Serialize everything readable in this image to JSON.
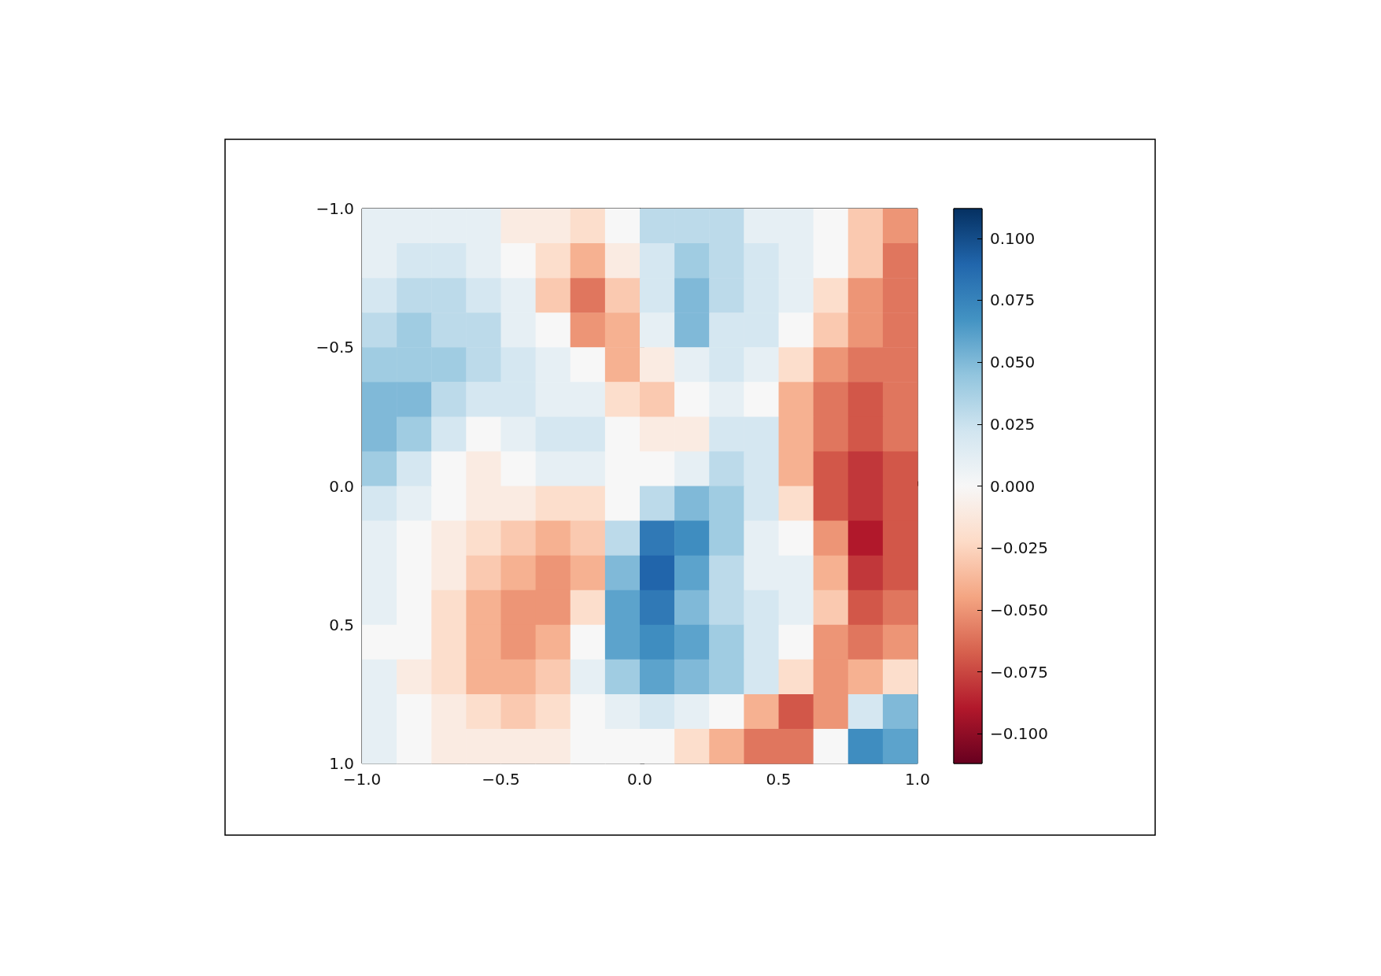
{
  "chart_data": {
    "type": "heatmap",
    "x": [
      -0.9375,
      -0.8125,
      -0.6875,
      -0.5625,
      -0.4375,
      -0.3125,
      -0.1875,
      -0.0625,
      0.0625,
      0.1875,
      0.3125,
      0.4375,
      0.5625,
      0.6875,
      0.8125,
      0.9375
    ],
    "y": [
      -0.9375,
      -0.8125,
      -0.6875,
      -0.5625,
      -0.4375,
      -0.3125,
      -0.1875,
      -0.0625,
      0.0625,
      0.1875,
      0.3125,
      0.4375,
      0.5625,
      0.6875,
      0.8125,
      0.9375
    ],
    "cells": [
      [
        0.01,
        0.01,
        0.01,
        0.01,
        -0.01,
        -0.01,
        -0.02,
        0.0,
        0.03,
        0.03,
        0.03,
        0.01,
        0.01,
        0.0,
        -0.03,
        -0.05
      ],
      [
        0.01,
        0.02,
        0.02,
        0.01,
        0.0,
        -0.02,
        -0.04,
        -0.01,
        0.02,
        0.04,
        0.03,
        0.02,
        0.01,
        0.0,
        -0.03,
        -0.06
      ],
      [
        0.02,
        0.03,
        0.03,
        0.02,
        0.01,
        -0.03,
        -0.06,
        -0.03,
        0.02,
        0.05,
        0.03,
        0.02,
        0.01,
        -0.02,
        -0.05,
        -0.06
      ],
      [
        0.03,
        0.04,
        0.03,
        0.03,
        0.01,
        0.0,
        -0.05,
        -0.04,
        0.01,
        0.05,
        0.02,
        0.02,
        0.0,
        -0.03,
        -0.05,
        -0.06
      ],
      [
        0.04,
        0.04,
        0.04,
        0.03,
        0.02,
        0.01,
        0.0,
        -0.04,
        -0.01,
        0.01,
        0.02,
        0.01,
        -0.02,
        -0.05,
        -0.06,
        -0.06
      ],
      [
        0.05,
        0.05,
        0.03,
        0.02,
        0.02,
        0.01,
        0.01,
        -0.02,
        -0.03,
        0.0,
        0.01,
        0.0,
        -0.04,
        -0.06,
        -0.07,
        -0.06
      ],
      [
        0.05,
        0.04,
        0.02,
        0.0,
        0.01,
        0.02,
        0.02,
        0.0,
        -0.01,
        -0.01,
        0.02,
        0.02,
        -0.04,
        -0.06,
        -0.07,
        -0.06
      ],
      [
        0.04,
        0.02,
        0.0,
        -0.01,
        0.0,
        0.01,
        0.01,
        0.0,
        0.0,
        0.01,
        0.03,
        0.02,
        -0.04,
        -0.07,
        -0.08,
        -0.07
      ],
      [
        0.02,
        0.01,
        0.0,
        -0.01,
        -0.01,
        -0.02,
        -0.02,
        0.0,
        0.03,
        0.05,
        0.04,
        0.02,
        -0.02,
        -0.07,
        -0.08,
        -0.07
      ],
      [
        0.01,
        0.0,
        -0.01,
        -0.02,
        -0.03,
        -0.04,
        -0.03,
        0.03,
        0.08,
        0.07,
        0.04,
        0.01,
        0.0,
        -0.05,
        -0.09,
        -0.07
      ],
      [
        0.01,
        0.0,
        -0.01,
        -0.03,
        -0.04,
        -0.05,
        -0.04,
        0.05,
        0.09,
        0.06,
        0.03,
        0.01,
        0.01,
        -0.04,
        -0.08,
        -0.07
      ],
      [
        0.01,
        0.0,
        -0.02,
        -0.04,
        -0.05,
        -0.05,
        -0.02,
        0.06,
        0.08,
        0.05,
        0.03,
        0.02,
        0.01,
        -0.03,
        -0.07,
        -0.06
      ],
      [
        0.0,
        0.0,
        -0.02,
        -0.04,
        -0.05,
        -0.04,
        0.0,
        0.06,
        0.07,
        0.06,
        0.04,
        0.02,
        0.0,
        -0.05,
        -0.06,
        -0.05
      ],
      [
        0.01,
        -0.01,
        -0.02,
        -0.04,
        -0.04,
        -0.03,
        0.01,
        0.04,
        0.06,
        0.05,
        0.04,
        0.02,
        -0.02,
        -0.05,
        -0.04,
        -0.02
      ],
      [
        0.01,
        0.0,
        -0.01,
        -0.02,
        -0.03,
        -0.02,
        0.0,
        0.01,
        0.02,
        0.01,
        0.0,
        -0.04,
        -0.07,
        -0.05,
        0.02,
        0.05
      ],
      [
        0.01,
        0.0,
        -0.01,
        -0.01,
        -0.01,
        -0.01,
        0.0,
        0.0,
        0.0,
        -0.02,
        -0.04,
        -0.06,
        -0.06,
        0.0,
        0.07,
        0.06
      ]
    ],
    "xlim": [
      -1,
      1
    ],
    "xticks": [
      {
        "value": -1,
        "label": "−1.0"
      },
      {
        "value": -0.5,
        "label": "−0.5"
      },
      {
        "value": 0,
        "label": "0.0"
      },
      {
        "value": 0.5,
        "label": "0.5"
      },
      {
        "value": 1,
        "label": "1.0"
      }
    ],
    "ylim": [
      1,
      -1
    ],
    "yticks": [
      {
        "value": -1,
        "label": "−1.0"
      },
      {
        "value": -0.5,
        "label": "−0.5"
      },
      {
        "value": 0,
        "label": "0.0"
      },
      {
        "value": 0.5,
        "label": "0.5"
      },
      {
        "value": 1,
        "label": "1.0"
      }
    ],
    "clim": [
      -0.112,
      0.112
    ],
    "cticks": [
      {
        "value": -0.1,
        "label": "−0.100"
      },
      {
        "value": -0.075,
        "label": "−0.075"
      },
      {
        "value": -0.05,
        "label": "−0.050"
      },
      {
        "value": -0.025,
        "label": "−0.025"
      },
      {
        "value": 0,
        "label": "0.000"
      },
      {
        "value": 0.025,
        "label": "0.025"
      },
      {
        "value": 0.05,
        "label": "0.050"
      },
      {
        "value": 0.075,
        "label": "0.075"
      },
      {
        "value": 0.1,
        "label": "0.100"
      }
    ]
  }
}
